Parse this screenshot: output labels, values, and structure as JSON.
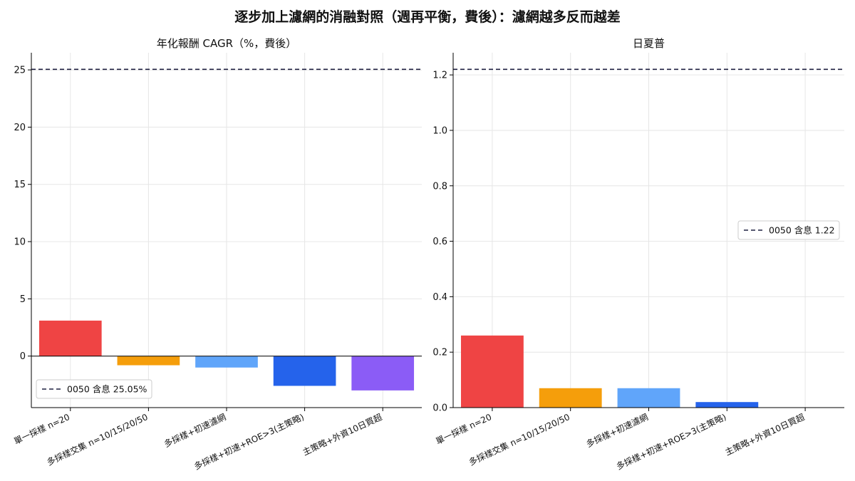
{
  "suptitle": "逐步加上濾網的消融對照（週再平衡，費後）：濾網越多反而越差",
  "chart_data": [
    {
      "type": "bar",
      "title": "年化報酬 CAGR（%，費後）",
      "categories": [
        "單一採樣 n=20",
        "多採樣交集 n=10/15/20/50",
        "多採樣+初速濾網",
        "多採樣+初速+ROE>3(主策略)",
        "主策略+外資10日買超"
      ],
      "values": [
        3.1,
        -0.8,
        -1.0,
        -2.6,
        -3.0
      ],
      "colors": [
        "#ef4444",
        "#f59e0b",
        "#60a5fa",
        "#2563eb",
        "#8b5cf6"
      ],
      "ylim": [
        -4.5,
        26.5
      ],
      "yticks": [
        0,
        5,
        10,
        15,
        20,
        25
      ],
      "ytick_labels": [
        "0",
        "5",
        "10",
        "15",
        "20",
        "25"
      ],
      "reference_line": {
        "value": 25.05,
        "label": "0050 含息 25.05%",
        "color": "#1f2040"
      },
      "legend_position": "lower-left",
      "grid": true
    },
    {
      "type": "bar",
      "title": "日夏普",
      "categories": [
        "單一採樣 n=20",
        "多採樣交集 n=10/15/20/50",
        "多採樣+初速濾網",
        "多採樣+初速+ROE>3(主策略)",
        "主策略+外資10日買超"
      ],
      "values": [
        0.26,
        0.07,
        0.07,
        0.02,
        0.0
      ],
      "colors": [
        "#ef4444",
        "#f59e0b",
        "#60a5fa",
        "#2563eb",
        "#8b5cf6"
      ],
      "ylim": [
        0,
        1.28
      ],
      "yticks": [
        0,
        0.2,
        0.4,
        0.6,
        0.8,
        1.0,
        1.2
      ],
      "ytick_labels": [
        "0.0",
        "0.2",
        "0.4",
        "0.6",
        "0.8",
        "1.0",
        "1.2"
      ],
      "reference_line": {
        "value": 1.22,
        "label": "0050 含息 1.22",
        "color": "#1f2040"
      },
      "legend_position": "center-right",
      "grid": true
    }
  ]
}
